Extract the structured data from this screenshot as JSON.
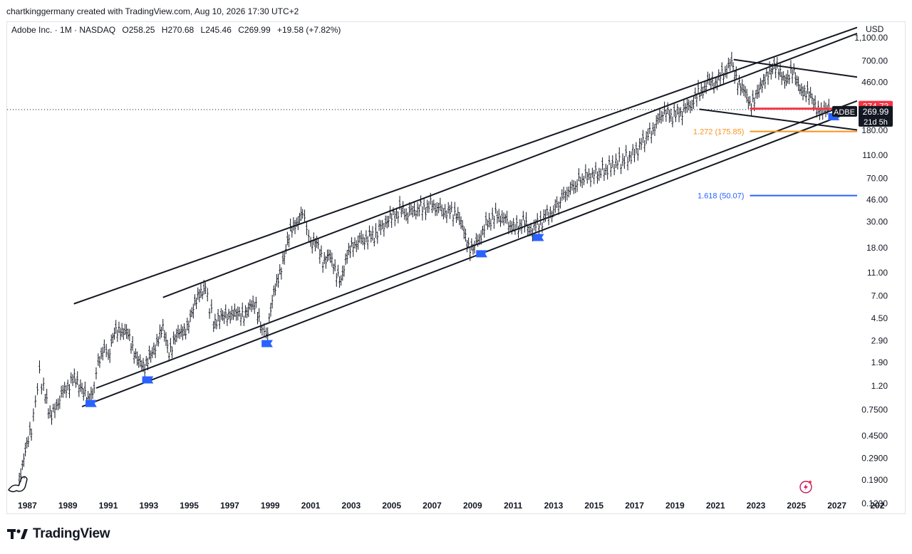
{
  "header": {
    "attribution": "chartkinggermany created with TradingView.com, Aug 10, 2026 17:30 UTC+2"
  },
  "legend": {
    "symbol": "Adobe Inc. · 1M · NASDAQ",
    "open": "O258.25",
    "high": "H270.68",
    "low": "L245.46",
    "close": "C269.99",
    "change": "+19.58 (+7.82%)"
  },
  "price_axis": {
    "currency": "USD",
    "ticks": [
      "1,100.00",
      "700.00",
      "460.00",
      "180.00",
      "110.00",
      "70.00",
      "46.00",
      "30.00",
      "18.00",
      "11.00",
      "7.00",
      "4.50",
      "2.90",
      "1.90",
      "1.20",
      "0.7500",
      "0.4500",
      "0.2900",
      "0.1900",
      "0.1200"
    ]
  },
  "time_axis": {
    "ticks": [
      "1987",
      "1989",
      "1991",
      "1993",
      "1995",
      "1997",
      "1999",
      "2001",
      "2003",
      "2005",
      "2007",
      "2009",
      "2011",
      "2013",
      "2015",
      "2017",
      "2019",
      "2021",
      "2023",
      "2025",
      "2027",
      "202"
    ]
  },
  "price_labels": {
    "resistance": "274.73",
    "ticker": "ADBE",
    "last_price": "269.99",
    "countdown": "21d 5h"
  },
  "fib_levels": [
    {
      "label": "1.272 (175.85)",
      "price": 175.85,
      "color": "#f7931a"
    },
    {
      "label": "1.618 (50.07)",
      "price": 50.07,
      "color": "#2962ff"
    }
  ],
  "brand": {
    "name": "TradingView"
  },
  "colors": {
    "up": "#131722",
    "accent_red": "#f23645",
    "accent_blue": "#2962ff",
    "accent_orange": "#f7931a"
  },
  "chart_data": {
    "type": "line",
    "scale": "log",
    "ylim": [
      0.1,
      1500
    ],
    "xlim": [
      1986.0,
      2028.0
    ],
    "series": [
      {
        "x": [
          1986.6,
          1986.9,
          1987.2,
          1987.4,
          1987.6,
          1987.8,
          1988.2,
          1988.6,
          1989.0,
          1989.4,
          1989.7,
          1990.0,
          1990.3,
          1990.5,
          1990.8,
          1991.0,
          1991.3,
          1991.6,
          1991.9,
          1992.2,
          1992.5,
          1992.8,
          1993.1,
          1993.4,
          1993.7,
          1994.0,
          1994.3,
          1994.6,
          1994.9,
          1995.2,
          1995.5,
          1995.8,
          1996.0,
          1996.2,
          1996.5,
          1996.8,
          1997.1,
          1997.4,
          1997.7,
          1998.0,
          1998.3,
          1998.6,
          1998.8,
          1999.1,
          1999.4,
          1999.7,
          2000.0,
          2000.3,
          2000.6,
          2000.8,
          2001.0,
          2001.3,
          2001.6,
          2001.9,
          2002.2,
          2002.5,
          2002.8,
          2003.1,
          2003.5,
          2003.9,
          2004.3,
          2004.7,
          2005.0,
          2005.4,
          2005.8,
          2006.2,
          2006.6,
          2007.0,
          2007.4,
          2007.8,
          2008.2,
          2008.5,
          2008.8,
          2009.1,
          2009.5,
          2009.9,
          2010.3,
          2010.7,
          2011.1,
          2011.5,
          2011.8,
          2012.2,
          2012.6,
          2013.0,
          2013.5,
          2014.0,
          2014.5,
          2015.0,
          2015.5,
          2016.0,
          2016.5,
          2017.0,
          2017.5,
          2018.0,
          2018.4,
          2018.8,
          2019.2,
          2019.6,
          2020.0,
          2020.3,
          2020.7,
          2021.0,
          2021.4,
          2021.8,
          2022.1,
          2022.4,
          2022.7,
          2023.0,
          2023.3,
          2023.6,
          2023.9,
          2024.2,
          2024.5,
          2024.8,
          2025.1,
          2025.4,
          2025.7,
          2026.0,
          2026.3,
          2026.6
        ],
        "values": [
          0.2,
          0.33,
          0.5,
          0.9,
          1.5,
          1.1,
          0.65,
          0.95,
          1.2,
          1.4,
          1.15,
          0.85,
          1.2,
          2.0,
          2.6,
          2.1,
          3.3,
          3.7,
          3.5,
          2.4,
          2.1,
          1.6,
          2.3,
          2.8,
          3.6,
          2.4,
          3.0,
          3.4,
          3.9,
          5.2,
          7.6,
          8.4,
          5.6,
          4.2,
          4.3,
          4.9,
          5.0,
          4.7,
          5.0,
          5.6,
          5.6,
          3.8,
          3.2,
          6.2,
          10.0,
          16.0,
          24.0,
          30.0,
          37.0,
          26.0,
          20.0,
          19.0,
          14.0,
          16.0,
          11.0,
          10.0,
          15.0,
          19.0,
          21.0,
          22.0,
          24.0,
          30.0,
          32.0,
          38.0,
          35.0,
          38.0,
          39.0,
          42.0,
          38.0,
          36.0,
          36.0,
          26.0,
          19.0,
          18.0,
          25.0,
          32.0,
          34.0,
          30.0,
          26.0,
          30.0,
          25.0,
          28.0,
          33.0,
          37.0,
          50.0,
          60.0,
          72.0,
          75.0,
          82.0,
          93.0,
          100.0,
          115.0,
          150.0,
          190.0,
          260.0,
          240.0,
          250.0,
          280.0,
          330.0,
          390.0,
          470.0,
          460.0,
          550.0,
          680.0,
          480.0,
          380.0,
          300.0,
          360.0,
          420.0,
          580.0,
          620.0,
          540.0,
          500.0,
          550.0,
          450.0,
          380.0,
          340.0,
          290.0,
          250.0,
          269.99
        ]
      }
    ],
    "channel_lines": [
      {
        "x": [
          1989.3,
          2028.0
        ],
        "values": [
          6.0,
          1350.0
        ]
      },
      {
        "x": [
          1993.7,
          2028.0
        ],
        "values": [
          6.8,
          1200.0
        ]
      },
      {
        "x": [
          1989.7,
          2028.0
        ],
        "values": [
          0.8,
          270.0
        ]
      },
      {
        "x": [
          1990.4,
          2028.0
        ],
        "values": [
          1.15,
          320.0
        ]
      },
      {
        "x": [
          2021.9,
          2028.0
        ],
        "values": [
          720.0,
          510.0
        ]
      },
      {
        "x": [
          2020.2,
          2028.0
        ],
        "values": [
          272.0,
          181.0
        ]
      }
    ],
    "horizontal_levels": [
      {
        "price": 274.73,
        "x_start": 2022.7,
        "color": "#f23645"
      },
      {
        "price": 175.85,
        "x_start": 2022.7,
        "color": "#f7931a"
      },
      {
        "price": 50.07,
        "x_start": 2022.7,
        "color": "#2962ff"
      }
    ],
    "flags": [
      {
        "x": 1989.9,
        "price": 0.85
      },
      {
        "x": 1992.7,
        "price": 1.35
      },
      {
        "x": 1998.6,
        "price": 2.75
      },
      {
        "x": 2009.2,
        "price": 16.0
      },
      {
        "x": 2012.0,
        "price": 22.0
      },
      {
        "x": 2026.6,
        "price": 235.0
      }
    ]
  }
}
